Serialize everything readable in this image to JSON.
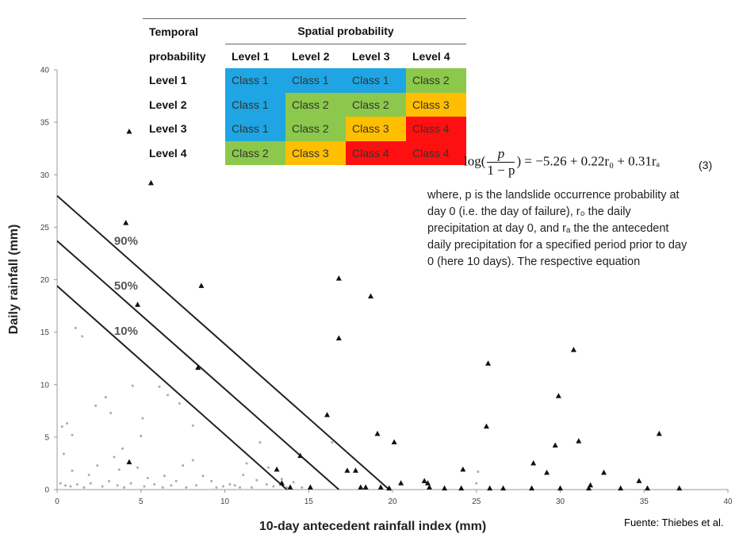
{
  "chart_data": {
    "type": "scatter",
    "xlabel": "10-day antecedent rainfall index (mm)",
    "ylabel": "Daily rainfall (mm)",
    "xlim": [
      0,
      40
    ],
    "ylim": [
      0,
      40
    ],
    "xticks": [
      "0",
      "5",
      "10",
      "15",
      "20",
      "25",
      "30",
      "35",
      "40"
    ],
    "yticks": [
      "0",
      "5",
      "10",
      "15",
      "20",
      "25",
      "30",
      "35",
      "40"
    ],
    "grid": false,
    "probability_lines": [
      {
        "label": "90%",
        "y_intercept": 28.0,
        "x_intercept": 19.8
      },
      {
        "label": "50%",
        "y_intercept": 23.7,
        "x_intercept": 16.8
      },
      {
        "label": "10%",
        "y_intercept": 19.4,
        "x_intercept": 13.7
      }
    ],
    "landslide_days": [
      [
        4.3,
        34.1
      ],
      [
        5.6,
        29.2
      ],
      [
        4.1,
        25.4
      ],
      [
        8.6,
        19.4
      ],
      [
        4.8,
        17.6
      ],
      [
        16.8,
        20.1
      ],
      [
        18.7,
        18.4
      ],
      [
        16.8,
        14.4
      ],
      [
        8.4,
        11.6
      ],
      [
        30.8,
        13.3
      ],
      [
        25.7,
        12.0
      ],
      [
        29.9,
        8.9
      ],
      [
        16.1,
        7.1
      ],
      [
        25.6,
        6.0
      ],
      [
        19.1,
        5.3
      ],
      [
        20.1,
        4.5
      ],
      [
        31.1,
        4.6
      ],
      [
        29.7,
        4.2
      ],
      [
        35.9,
        5.3
      ],
      [
        14.5,
        3.2
      ],
      [
        4.3,
        2.6
      ],
      [
        13.1,
        1.9
      ],
      [
        17.3,
        1.8
      ],
      [
        17.8,
        1.8
      ],
      [
        24.2,
        1.9
      ],
      [
        28.4,
        2.5
      ],
      [
        29.2,
        1.6
      ],
      [
        32.6,
        1.6
      ],
      [
        22.1,
        0.6
      ],
      [
        20.5,
        0.6
      ],
      [
        21.9,
        0.8
      ],
      [
        34.7,
        0.8
      ],
      [
        31.8,
        0.4
      ],
      [
        13.4,
        0.6
      ],
      [
        13.9,
        0.2
      ],
      [
        15.1,
        0.2
      ],
      [
        18.1,
        0.2
      ],
      [
        18.4,
        0.2
      ],
      [
        19.3,
        0.2
      ],
      [
        19.8,
        0.1
      ],
      [
        22.2,
        0.2
      ],
      [
        23.1,
        0.1
      ],
      [
        24.1,
        0.1
      ],
      [
        25.8,
        0.1
      ],
      [
        26.6,
        0.1
      ],
      [
        28.3,
        0.1
      ],
      [
        30.0,
        0.1
      ],
      [
        31.7,
        0.1
      ],
      [
        33.6,
        0.1
      ],
      [
        35.2,
        0.1
      ],
      [
        37.1,
        0.1
      ]
    ],
    "non_landslide_days": [
      [
        0.3,
        6.0
      ],
      [
        0.6,
        6.3
      ],
      [
        0.9,
        5.2
      ],
      [
        0.4,
        3.4
      ],
      [
        1.5,
        14.6
      ],
      [
        1.1,
        15.4
      ],
      [
        2.3,
        8.0
      ],
      [
        2.9,
        8.8
      ],
      [
        3.2,
        7.3
      ],
      [
        4.5,
        9.9
      ],
      [
        5.1,
        6.8
      ],
      [
        6.1,
        9.8
      ],
      [
        6.6,
        9.0
      ],
      [
        7.3,
        8.2
      ],
      [
        8.1,
        6.1
      ],
      [
        5.0,
        5.1
      ],
      [
        3.9,
        3.9
      ],
      [
        3.4,
        3.1
      ],
      [
        4.8,
        2.1
      ],
      [
        7.5,
        2.3
      ],
      [
        8.1,
        2.8
      ],
      [
        8.7,
        1.3
      ],
      [
        9.2,
        0.8
      ],
      [
        10.3,
        0.5
      ],
      [
        11.3,
        2.5
      ],
      [
        12.1,
        4.5
      ],
      [
        12.6,
        2.1
      ],
      [
        13.4,
        1.0
      ],
      [
        14.1,
        0.7
      ],
      [
        16.4,
        4.5
      ],
      [
        25.1,
        1.7
      ],
      [
        0.9,
        1.8
      ],
      [
        1.9,
        1.4
      ],
      [
        2.4,
        2.3
      ],
      [
        3.7,
        1.9
      ],
      [
        5.4,
        1.1
      ],
      [
        6.4,
        1.3
      ],
      [
        7.1,
        0.8
      ],
      [
        10.6,
        0.4
      ],
      [
        11.1,
        1.4
      ],
      [
        11.9,
        0.9
      ],
      [
        12.5,
        0.5
      ],
      [
        0.2,
        0.6
      ],
      [
        0.5,
        0.4
      ],
      [
        0.8,
        0.3
      ],
      [
        1.2,
        0.5
      ],
      [
        1.6,
        0.2
      ],
      [
        2.0,
        0.6
      ],
      [
        2.7,
        0.3
      ],
      [
        3.1,
        0.8
      ],
      [
        3.6,
        0.4
      ],
      [
        4.0,
        0.2
      ],
      [
        4.4,
        0.6
      ],
      [
        5.2,
        0.3
      ],
      [
        5.8,
        0.5
      ],
      [
        6.3,
        0.2
      ],
      [
        6.8,
        0.4
      ],
      [
        7.7,
        0.2
      ],
      [
        8.3,
        0.4
      ],
      [
        9.5,
        0.2
      ],
      [
        9.9,
        0.3
      ],
      [
        10.9,
        0.2
      ],
      [
        11.6,
        0.2
      ],
      [
        12.9,
        0.3
      ],
      [
        13.7,
        0.2
      ],
      [
        14.6,
        0.2
      ],
      [
        25.0,
        0.6
      ]
    ]
  },
  "class_table": {
    "header_temporal_1": "Temporal",
    "header_temporal_2": "probability",
    "header_spatial": "Spatial probability",
    "columns": [
      "Level 1",
      "Level 2",
      "Level 3",
      "Level 4"
    ],
    "rows": [
      {
        "label": "Level 1",
        "cells": [
          "Class 1",
          "Class 1",
          "Class 1",
          "Class 2"
        ]
      },
      {
        "label": "Level 2",
        "cells": [
          "Class 1",
          "Class 2",
          "Class 2",
          "Class 3"
        ]
      },
      {
        "label": "Level 3",
        "cells": [
          "Class 1",
          "Class 2",
          "Class 3",
          "Class 4"
        ]
      },
      {
        "label": "Level 4",
        "cells": [
          "Class 2",
          "Class 3",
          "Class 4",
          "Class 4"
        ]
      }
    ],
    "class_colors": {
      "Class 1": "#1fa5e3",
      "Class 2": "#8cc84b",
      "Class 3": "#ffbf00",
      "Class 4": "#ff1010"
    }
  },
  "equation": {
    "log": "log(",
    "numerator": "p",
    "denominator": "1 − p",
    "rhs": ") = −5.26 + 0.22r₀ + 0.31rₐ",
    "number": "(3)"
  },
  "paragraph": {
    "line1": "where, p is the landslide occurrence probability at",
    "line2": "day 0 (i.e. the day of failure), r₀ the daily",
    "line3": "precipitation at day 0, and rₐ the the antecedent",
    "line4": "daily precipitation for a specified period prior to day",
    "line5": "0 (here 10 days). The respective equation"
  },
  "source": "Fuente: Thiebes et al."
}
